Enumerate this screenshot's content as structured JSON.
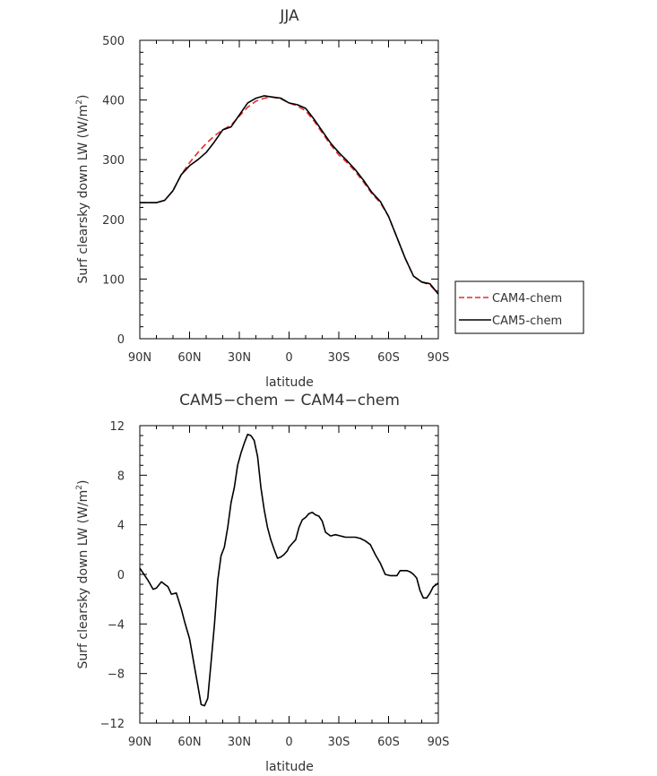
{
  "chart_data": [
    {
      "type": "line",
      "title": "JJA",
      "xlabel": "latitude",
      "ylabel": "Surf clearsky down LW (W/m",
      "ylabel_sup": "2",
      "ylabel_close": ")",
      "xlim": [
        90,
        -90
      ],
      "ylim": [
        0,
        500
      ],
      "xticks": [
        90,
        60,
        30,
        0,
        -30,
        -60,
        -90
      ],
      "xtick_labels": [
        "90N",
        "60N",
        "30N",
        "0",
        "30S",
        "60S",
        "90S"
      ],
      "yticks": [
        0,
        100,
        200,
        300,
        400,
        500
      ],
      "ytick_labels": [
        "0",
        "100",
        "200",
        "300",
        "400",
        "500"
      ],
      "legend": "right",
      "series": [
        {
          "name": "CAM4-chem",
          "color": "#e8282b",
          "dash": "dashed",
          "x": [
            90,
            80,
            75,
            70,
            65,
            60,
            55,
            50,
            45,
            40,
            35,
            30,
            25,
            20,
            15,
            10,
            5,
            0,
            -5,
            -10,
            -15,
            -20,
            -25,
            -30,
            -35,
            -40,
            -45,
            -50,
            -55,
            -60,
            -65,
            -70,
            -75,
            -80,
            -85,
            -90
          ],
          "y": [
            228,
            228,
            232,
            248,
            275,
            295,
            312,
            327,
            340,
            350,
            358,
            373,
            388,
            398,
            403,
            405,
            402,
            395,
            390,
            382,
            365,
            345,
            325,
            308,
            295,
            280,
            262,
            243,
            228,
            205,
            170,
            135,
            105,
            95,
            90,
            75
          ]
        },
        {
          "name": "CAM5-chem",
          "color": "#000000",
          "dash": "solid",
          "x": [
            90,
            80,
            75,
            70,
            65,
            60,
            55,
            50,
            45,
            40,
            35,
            30,
            25,
            20,
            15,
            10,
            5,
            0,
            -5,
            -10,
            -15,
            -20,
            -25,
            -30,
            -35,
            -40,
            -45,
            -50,
            -55,
            -60,
            -65,
            -70,
            -75,
            -80,
            -85,
            -90
          ],
          "y": [
            228,
            228,
            232,
            248,
            275,
            290,
            300,
            312,
            330,
            350,
            355,
            375,
            395,
            403,
            407,
            405,
            403,
            395,
            392,
            386,
            368,
            348,
            328,
            312,
            298,
            283,
            265,
            245,
            230,
            205,
            170,
            135,
            105,
            95,
            92,
            75
          ]
        }
      ]
    },
    {
      "type": "line",
      "title": "CAM5−chem − CAM4−chem",
      "xlabel": "latitude",
      "ylabel": "Surf clearsky down LW (W/m",
      "ylabel_sup": "2",
      "ylabel_close": ")",
      "xlim": [
        90,
        -90
      ],
      "ylim": [
        -12,
        12
      ],
      "xticks": [
        90,
        60,
        30,
        0,
        -30,
        -60,
        -90
      ],
      "xtick_labels": [
        "90N",
        "60N",
        "30N",
        "0",
        "30S",
        "60S",
        "90S"
      ],
      "yticks": [
        -12,
        -8,
        -4,
        0,
        4,
        8,
        12
      ],
      "ytick_labels": [
        "−12",
        "−8",
        "−4",
        "0",
        "4",
        "8",
        "12"
      ],
      "series": [
        {
          "color": "#000000",
          "dash": "solid",
          "x": [
            90,
            88,
            85,
            82,
            80,
            77,
            75,
            73,
            71,
            68,
            65,
            63,
            60,
            57,
            55,
            53,
            51,
            49,
            47,
            45,
            43,
            41,
            39,
            37,
            35,
            33,
            31,
            29,
            27,
            25,
            23,
            21,
            19,
            17,
            15,
            13,
            11,
            9,
            7,
            5,
            3,
            1,
            0,
            -2,
            -4,
            -6,
            -8,
            -10,
            -12,
            -14,
            -16,
            -18,
            -20,
            -22,
            -25,
            -28,
            -31,
            -34,
            -37,
            -40,
            -43,
            -46,
            -49,
            -52,
            -55,
            -58,
            -61,
            -63,
            -65,
            -67,
            -69,
            -71,
            -73,
            -75,
            -77,
            -79,
            -81,
            -83,
            -85,
            -87,
            -90
          ],
          "y": [
            0.5,
            0.1,
            -0.5,
            -1.2,
            -1.1,
            -0.6,
            -0.8,
            -1.0,
            -1.6,
            -1.5,
            -2.8,
            -3.8,
            -5.2,
            -7.5,
            -9.0,
            -10.5,
            -10.6,
            -10.0,
            -7.0,
            -4.0,
            -0.5,
            1.5,
            2.2,
            3.8,
            5.8,
            7.0,
            8.8,
            9.8,
            10.6,
            11.3,
            11.2,
            10.8,
            9.5,
            7.0,
            5.2,
            3.8,
            2.8,
            2.0,
            1.3,
            1.4,
            1.6,
            1.9,
            2.2,
            2.5,
            2.8,
            3.8,
            4.4,
            4.6,
            4.9,
            5.0,
            4.8,
            4.7,
            4.3,
            3.4,
            3.1,
            3.2,
            3.1,
            3.0,
            3.0,
            3.0,
            2.9,
            2.7,
            2.4,
            1.6,
            0.9,
            0.0,
            -0.1,
            -0.1,
            -0.1,
            0.3,
            0.3,
            0.3,
            0.2,
            0.0,
            -0.3,
            -1.3,
            -1.9,
            -1.9,
            -1.5,
            -1.0,
            -0.7
          ]
        }
      ]
    }
  ]
}
